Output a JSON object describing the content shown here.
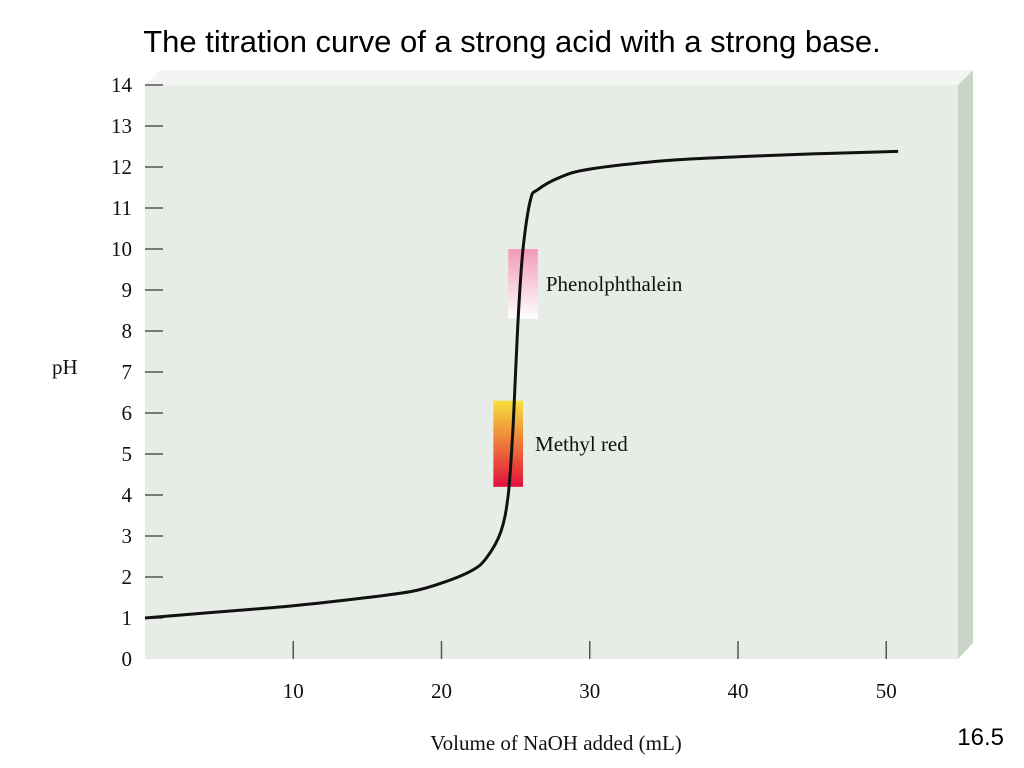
{
  "slide": {
    "title": "The titration curve of a strong acid with a strong base.",
    "number": "16.5"
  },
  "colors": {
    "plot_background": "#e7ede6",
    "plot_side": "#c9d6c7",
    "curve": "#111111",
    "phenolphthalein_top": "#f09ab8",
    "phenolphthalein_bottom": "#ffffff",
    "methyl_red_top": "#f7e03a",
    "methyl_red_bottom": "#e4103c"
  },
  "chart_data": {
    "type": "line",
    "title": "",
    "xlabel": "Volume of NaOH added (mL)",
    "ylabel": "pH",
    "xlim": [
      0,
      55
    ],
    "ylim": [
      0,
      14
    ],
    "x_ticks": [
      10,
      20,
      30,
      40,
      50
    ],
    "y_ticks": [
      0,
      1,
      2,
      3,
      4,
      5,
      6,
      7,
      8,
      9,
      10,
      11,
      12,
      13,
      14
    ],
    "grid": false,
    "series": [
      {
        "x": [
          0,
          5,
          10,
          15,
          18,
          20,
          22,
          23,
          24,
          24.5,
          24.8,
          25,
          25.2,
          25.5,
          26,
          26.5,
          28,
          30,
          35,
          40,
          45,
          50.8
        ],
        "y": [
          1.0,
          1.15,
          1.3,
          1.5,
          1.65,
          1.85,
          2.15,
          2.45,
          3.1,
          4.0,
          5.5,
          7.0,
          8.5,
          10.0,
          11.2,
          11.45,
          11.75,
          11.95,
          12.15,
          12.25,
          12.32,
          12.38
        ]
      }
    ],
    "annotations": [
      {
        "text": "Phenolphthalein",
        "x_range": [
          24.5,
          26.5
        ],
        "y_range": [
          8.3,
          10.0
        ]
      },
      {
        "text": "Methyl red",
        "x_range": [
          23.5,
          25.5
        ],
        "y_range": [
          4.2,
          6.3
        ]
      }
    ]
  }
}
